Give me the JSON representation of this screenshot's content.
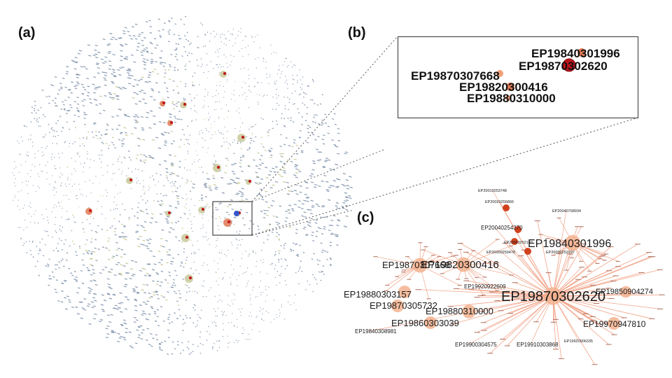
{
  "panel_labels": {
    "a": "(a)",
    "b": "(b)",
    "c": "(c)"
  },
  "colors": {
    "node_default": "#8a9cb3",
    "node_mid": "#c9c99a",
    "node_hot": "#e07a55",
    "node_core": "#c0141a",
    "edge": "#f2a58a",
    "node_c": "#f3b28e"
  },
  "panel_b": {
    "labels": [
      {
        "text": "EP19840301996"
      },
      {
        "text": "EP19870302620"
      },
      {
        "text": "EP19870307668"
      },
      {
        "text": "EP19820300416"
      },
      {
        "text": "EP19880310000"
      }
    ]
  },
  "panel_c": {
    "large_labels": [
      "EP19870302620",
      "EP19840301996",
      "EP19820300416",
      "EP19870307668",
      "EP19880303157",
      "EP19870305732",
      "EP19880310000",
      "EP19860303039",
      "EP19850904274",
      "EP19970947810"
    ],
    "small_labels": [
      "EP20010253748",
      "EP20020256866",
      "EP20040768934",
      "EP20040254370",
      "EP20030252197",
      "EP19920922609",
      "EP19840308981",
      "EP19900304575",
      "EP19910303868",
      "EP19920906335",
      "EP20000250478",
      "EP20060252150"
    ]
  }
}
